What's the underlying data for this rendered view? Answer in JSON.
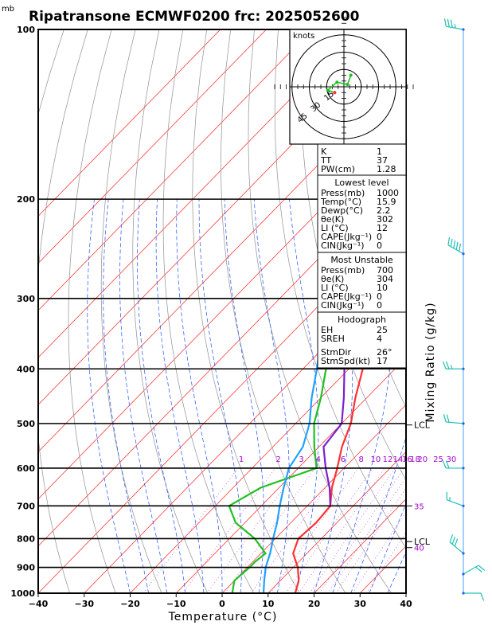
{
  "title": "Ripatransone ECMWF0200 frc: 2025052600",
  "units_mb": "mb",
  "hodo_units": "knots",
  "colors": {
    "isotherm": "#ff2020",
    "dry_adiabat": "#909090",
    "moist_adiabat": "#2050ff",
    "mixing_ratio": "#c040c0",
    "temperature": "#ff3030",
    "dewpoint": "#20c020",
    "parcel": "#7a20d0",
    "wetbulb": "#20a0ff",
    "mix_label": "#a000c8"
  },
  "chart_data": {
    "type": "line",
    "xlabel": "Temperature (°C)",
    "ylabel": "Mixing Ratio (g/kg)",
    "x_ticks": [
      "−40",
      "−30",
      "−20",
      "−10",
      "0",
      "10",
      "20",
      "30",
      "40"
    ],
    "x_tick_values": [
      -40,
      -30,
      -20,
      -10,
      0,
      10,
      20,
      30,
      40
    ],
    "xlim": [
      -40,
      40
    ],
    "ylim": [
      1000,
      100
    ],
    "y_scale": "log",
    "p_ticks": [
      "100",
      "200",
      "300",
      "400",
      "500",
      "600",
      "700",
      "800",
      "900",
      "1000"
    ],
    "p_tick_values": [
      100,
      200,
      300,
      400,
      500,
      600,
      700,
      800,
      900,
      1000
    ],
    "mixing_ratio_labels": [
      "1",
      "2",
      "3",
      "4",
      "6",
      "8",
      "10",
      "12",
      "14",
      "16",
      "18",
      "20",
      "25",
      "30"
    ],
    "mixing_ratio_values": [
      1,
      2,
      3,
      4,
      6,
      8,
      10,
      12,
      14,
      16,
      18,
      20,
      25,
      30
    ],
    "right_labels": [
      {
        "text": "LCL",
        "p": 503
      },
      {
        "text": "35",
        "p": 700
      },
      {
        "text": "LCL",
        "p": 810
      },
      {
        "text": "40",
        "p": 830
      }
    ],
    "series": [
      {
        "key": "temperature",
        "points": [
          [
            1000,
            15.9
          ],
          [
            950,
            14
          ],
          [
            900,
            11
          ],
          [
            850,
            7
          ],
          [
            800,
            5
          ],
          [
            750,
            5.5
          ],
          [
            700,
            5
          ],
          [
            650,
            1.5
          ],
          [
            600,
            -1.5
          ],
          [
            550,
            -5
          ],
          [
            500,
            -8
          ],
          [
            450,
            -12.5
          ],
          [
            400,
            -17
          ],
          [
            350,
            -23
          ],
          [
            300,
            -30
          ],
          [
            250,
            -38
          ],
          [
            200,
            -37
          ],
          [
            150,
            -31
          ],
          [
            100,
            -26
          ]
        ]
      },
      {
        "key": "dewpoint",
        "points": [
          [
            1000,
            2.2
          ],
          [
            950,
            0
          ],
          [
            900,
            0.5
          ],
          [
            880,
            0.5
          ],
          [
            850,
            1
          ],
          [
            800,
            -4.5
          ],
          [
            750,
            -12
          ],
          [
            700,
            -17
          ],
          [
            650,
            -14
          ],
          [
            600,
            -6
          ],
          [
            550,
            -11
          ],
          [
            500,
            -16
          ],
          [
            450,
            -20
          ],
          [
            400,
            -25
          ],
          [
            350,
            -30
          ],
          [
            300,
            -37
          ],
          [
            250,
            -45
          ],
          [
            200,
            -52
          ],
          [
            150,
            -60
          ],
          [
            100,
            -67
          ]
        ]
      },
      {
        "key": "parcel",
        "points": [
          [
            500,
            -10
          ],
          [
            450,
            -15
          ],
          [
            400,
            -21
          ],
          [
            350,
            -28
          ],
          [
            300,
            -36
          ],
          [
            250,
            -46
          ],
          [
            200,
            -57
          ],
          [
            170,
            -66
          ]
        ]
      },
      {
        "key": "parcel2",
        "points": [
          [
            700,
            5
          ],
          [
            650,
            1
          ],
          [
            600,
            -4
          ],
          [
            550,
            -9
          ],
          [
            500,
            -10
          ]
        ]
      },
      {
        "key": "wetbulb",
        "points": [
          [
            1000,
            9
          ],
          [
            950,
            6.5
          ],
          [
            900,
            4
          ],
          [
            850,
            2
          ],
          [
            800,
            -0.5
          ],
          [
            750,
            -3
          ],
          [
            700,
            -6
          ],
          [
            650,
            -9
          ],
          [
            600,
            -12
          ],
          [
            550,
            -13.5
          ],
          [
            500,
            -17
          ],
          [
            450,
            -22
          ],
          [
            400,
            -27
          ],
          [
            350,
            -33
          ],
          [
            300,
            -40
          ],
          [
            250,
            -49
          ],
          [
            200,
            -60
          ],
          [
            170,
            -67
          ]
        ]
      }
    ],
    "winds": [
      {
        "p": 1000,
        "dir": 90,
        "spd": 10
      },
      {
        "p": 925,
        "dir": 60,
        "spd": 20
      },
      {
        "p": 850,
        "dir": 310,
        "spd": 30
      },
      {
        "p": 700,
        "dir": 290,
        "spd": 15
      },
      {
        "p": 600,
        "dir": 270,
        "spd": 20
      },
      {
        "p": 500,
        "dir": 275,
        "spd": 20
      },
      {
        "p": 400,
        "dir": 270,
        "spd": 25
      },
      {
        "p": 250,
        "dir": 300,
        "spd": 50
      },
      {
        "p": 100,
        "dir": 280,
        "spd": 35
      }
    ],
    "hodograph": {
      "rings": [
        "15",
        "30",
        "45"
      ],
      "points": [
        [
          -8,
          -5
        ],
        [
          -14,
          -3
        ],
        [
          -6,
          4
        ],
        [
          3,
          2
        ],
        [
          6,
          10
        ]
      ]
    }
  },
  "panel": {
    "top": [
      [
        "K",
        "1"
      ],
      [
        "TT",
        "37"
      ],
      [
        "PW(cm)",
        "1.28"
      ]
    ],
    "lowest_title": "Lowest level",
    "lowest": [
      [
        "Press(mb)",
        "1000"
      ],
      [
        "Temp(°C)",
        "15.9"
      ],
      [
        "Dewp(°C)",
        "2.2"
      ],
      [
        "θe(K)",
        "302"
      ],
      [
        "LI (°C)",
        "12"
      ],
      [
        "CAPE(Jkg⁻¹)",
        "0"
      ],
      [
        "CIN(Jkg⁻¹)",
        "0"
      ]
    ],
    "unstable_title": "Most Unstable",
    "unstable": [
      [
        "Press(mb)",
        "700"
      ],
      [
        "θe(K)",
        "304"
      ],
      [
        "LI (°C)",
        "10"
      ],
      [
        "CAPE(Jkg⁻¹)",
        "0"
      ],
      [
        "CIN(Jkg⁻¹)",
        "0"
      ]
    ],
    "hodo_title": "Hodograph",
    "hodo": [
      [
        "EH",
        "25"
      ],
      [
        "SREH",
        "4"
      ]
    ],
    "storm": [
      [
        "StmDir",
        "26°"
      ],
      [
        "StmSpd(kt)",
        "17"
      ]
    ]
  }
}
